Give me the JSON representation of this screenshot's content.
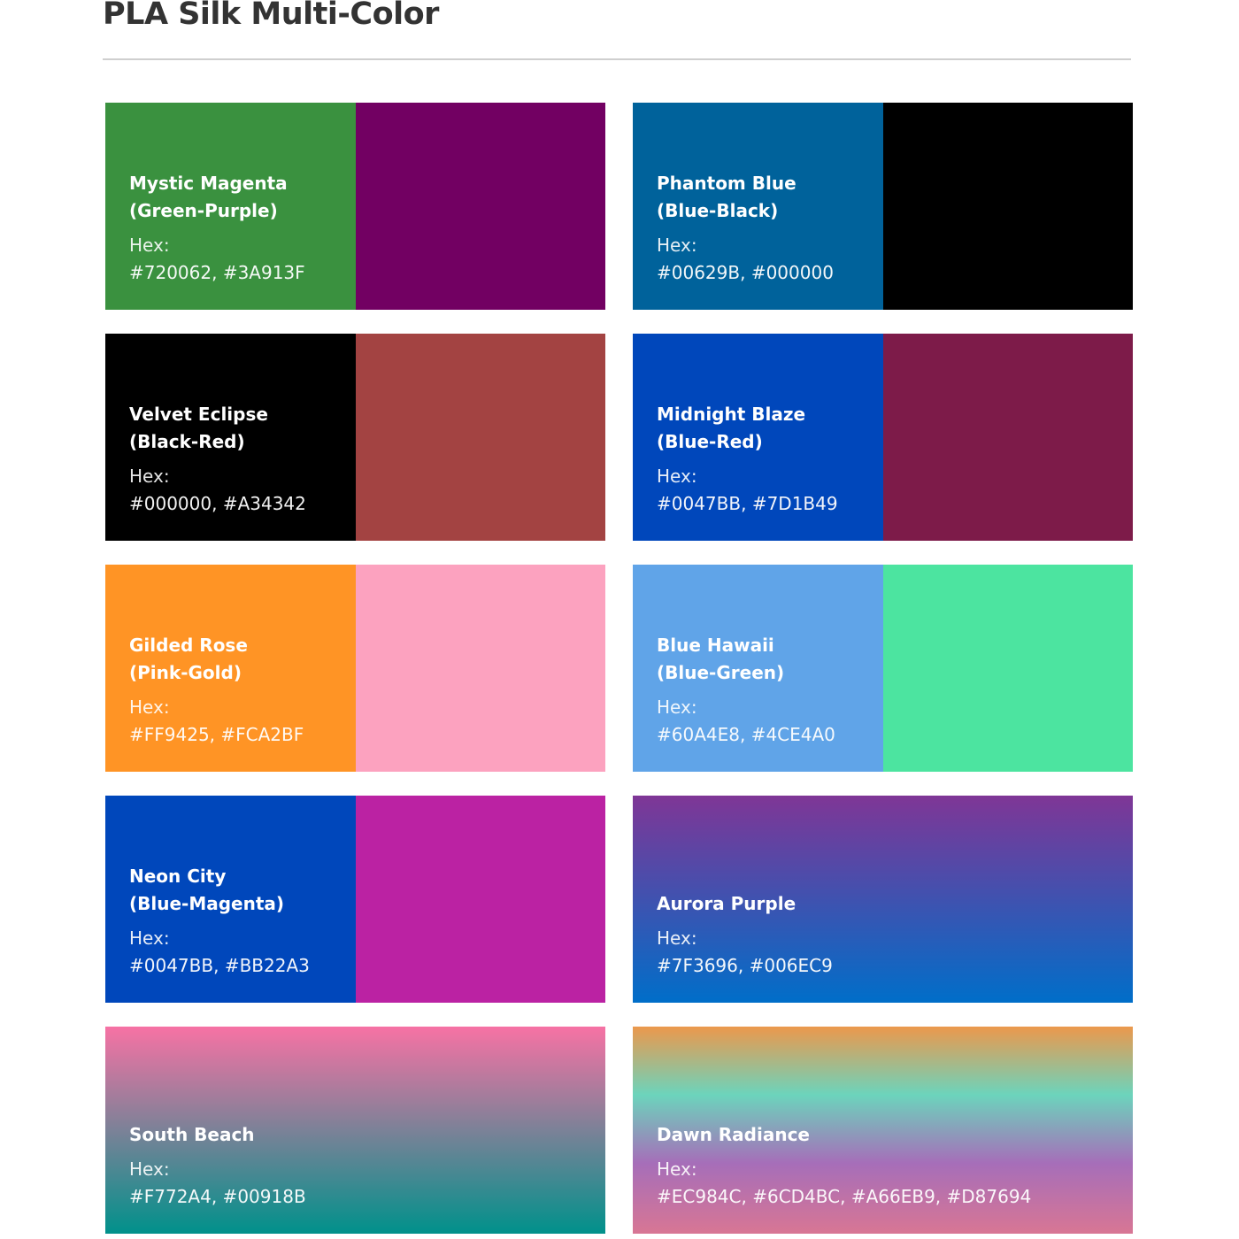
{
  "title": "PLA Silk Multi-Color",
  "hex_label": "Hex:",
  "cards": [
    {
      "name_line1": "Mystic Magenta",
      "name_line2": "(Green-Purple)",
      "hex": "#720062, #3A913F",
      "colors": [
        "#3A913F",
        "#720062"
      ],
      "style": "split"
    },
    {
      "name_line1": "Phantom Blue",
      "name_line2": "(Blue-Black)",
      "hex": "#00629B, #000000",
      "colors": [
        "#00629B",
        "#000000"
      ],
      "style": "split"
    },
    {
      "name_line1": "Velvet Eclipse",
      "name_line2": "(Black-Red)",
      "hex": "#000000, #A34342",
      "colors": [
        "#000000",
        "#A34342"
      ],
      "style": "split"
    },
    {
      "name_line1": "Midnight Blaze",
      "name_line2": "(Blue-Red)",
      "hex": "#0047BB, #7D1B49",
      "colors": [
        "#0047BB",
        "#7D1B49"
      ],
      "style": "split"
    },
    {
      "name_line1": "Gilded Rose",
      "name_line2": "(Pink-Gold)",
      "hex": "#FF9425, #FCA2BF",
      "colors": [
        "#FF9425",
        "#FCA2BF"
      ],
      "style": "split"
    },
    {
      "name_line1": "Blue Hawaii",
      "name_line2": "(Blue-Green)",
      "hex": "#60A4E8, #4CE4A0",
      "colors": [
        "#60A4E8",
        "#4CE4A0"
      ],
      "style": "split"
    },
    {
      "name_line1": "Neon City",
      "name_line2": "(Blue-Magenta)",
      "hex": "#0047BB, #BB22A3",
      "colors": [
        "#0047BB",
        "#BB22A3"
      ],
      "style": "split"
    },
    {
      "name_line1": "Aurora Purple",
      "name_line2": "",
      "hex": "#7F3696, #006EC9",
      "colors": [
        "#7F3696",
        "#006EC9"
      ],
      "style": "gradient"
    },
    {
      "name_line1": "South Beach",
      "name_line2": "",
      "hex": "#F772A4, #00918B",
      "colors": [
        "#F772A4",
        "#00918B"
      ],
      "style": "gradient"
    },
    {
      "name_line1": "Dawn Radiance",
      "name_line2": "",
      "hex": "#EC984C, #6CD4BC, #A66EB9, #D87694",
      "colors": [
        "#EC984C",
        "#6CD4BC",
        "#A66EB9",
        "#D87694"
      ],
      "style": "gradient"
    }
  ]
}
